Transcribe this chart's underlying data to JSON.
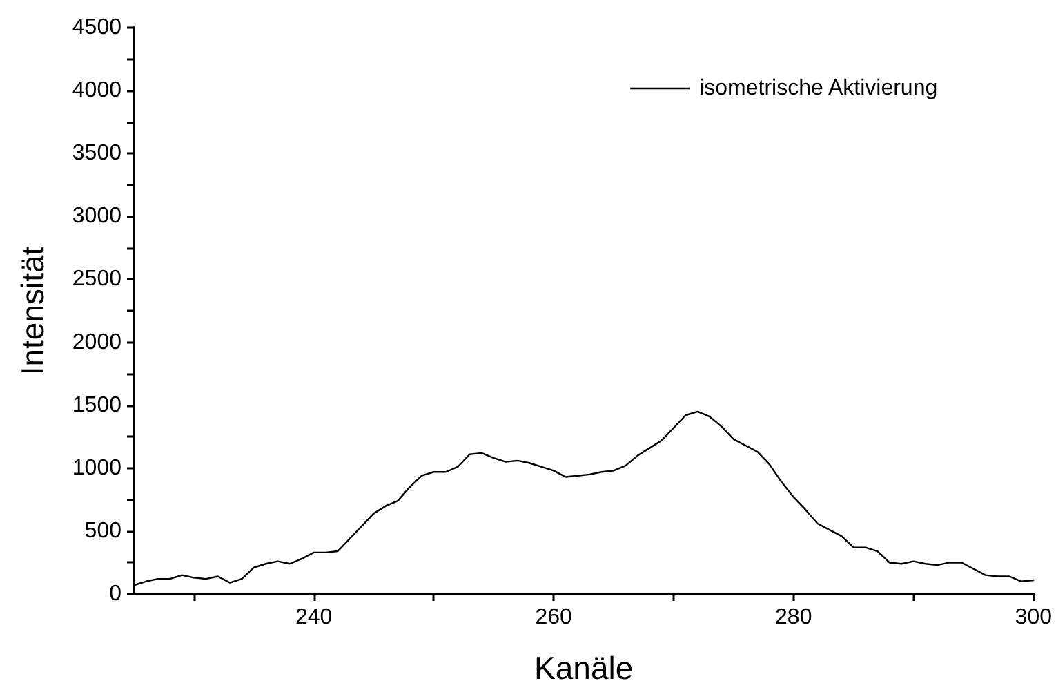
{
  "chart_data": {
    "type": "line",
    "xlabel": "Kanäle",
    "ylabel": "Intensität",
    "x": [
      225,
      226,
      227,
      228,
      229,
      230,
      231,
      232,
      233,
      234,
      235,
      236,
      237,
      238,
      239,
      240,
      241,
      242,
      243,
      244,
      245,
      246,
      247,
      248,
      249,
      250,
      251,
      252,
      253,
      254,
      255,
      256,
      257,
      258,
      259,
      260,
      261,
      262,
      263,
      264,
      265,
      266,
      267,
      268,
      269,
      270,
      271,
      272,
      273,
      274,
      275,
      276,
      277,
      278,
      279,
      280,
      281,
      282,
      283,
      284,
      285,
      286,
      287,
      288,
      289,
      290,
      291,
      292,
      293,
      294,
      295,
      296,
      297,
      298,
      299,
      300
    ],
    "series": [
      {
        "name": "isometrische Aktivierung",
        "color": "#000000",
        "values": [
          70,
          100,
          120,
          120,
          150,
          130,
          120,
          140,
          90,
          120,
          210,
          240,
          260,
          240,
          280,
          330,
          330,
          340,
          440,
          540,
          640,
          700,
          740,
          850,
          940,
          970,
          970,
          1010,
          1110,
          1120,
          1080,
          1050,
          1060,
          1040,
          1010,
          980,
          930,
          940,
          950,
          970,
          980,
          1020,
          1100,
          1160,
          1220,
          1320,
          1420,
          1450,
          1410,
          1330,
          1230,
          1180,
          1130,
          1030,
          890,
          770,
          670,
          560,
          510,
          460,
          370,
          370,
          340,
          250,
          240,
          260,
          240,
          230,
          250,
          250,
          200,
          150,
          140,
          140,
          100,
          110
        ]
      }
    ],
    "xlim": [
      225,
      300
    ],
    "xticks": [
      {
        "value": 230,
        "label": null
      },
      240,
      {
        "value": 250,
        "label": null
      },
      260,
      {
        "value": 270,
        "label": null
      },
      280,
      {
        "value": 290,
        "label": null
      },
      300
    ],
    "ylim": [
      0,
      4500
    ],
    "yticks": [
      0,
      {
        "value": 250,
        "label": null
      },
      500,
      {
        "value": 750,
        "label": null
      },
      1000,
      {
        "value": 1250,
        "label": null
      },
      1500,
      {
        "value": 1750,
        "label": null
      },
      2000,
      {
        "value": 2250,
        "label": null
      },
      2500,
      {
        "value": 2750,
        "label": null
      },
      3000,
      {
        "value": 3250,
        "label": null
      },
      3500,
      {
        "value": 3750,
        "label": null
      },
      4000,
      {
        "value": 4250,
        "label": null
      },
      4500
    ],
    "grid": false,
    "legend": "top right",
    "marker": "none",
    "line_style": "solid"
  }
}
